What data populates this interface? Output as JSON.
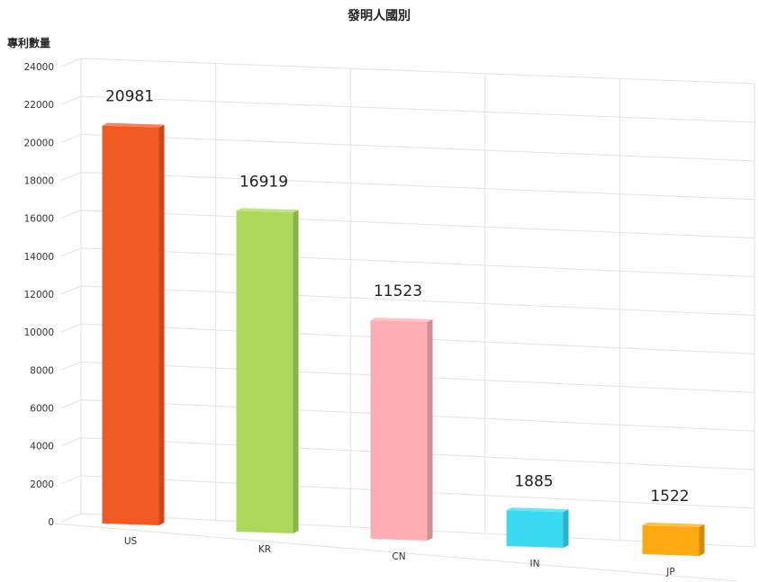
{
  "chart_data": {
    "type": "bar",
    "title": "發明人國別",
    "ylabel": "專利數量",
    "xlabel": "",
    "categories": [
      "US",
      "KR",
      "CN",
      "IN",
      "JP"
    ],
    "values": [
      20981,
      16919,
      11523,
      1885,
      1522
    ],
    "colors": [
      "#f25a24",
      "#acd95a",
      "#ffadb3",
      "#3ad9f2",
      "#ffa912"
    ],
    "ylim": [
      0,
      24000
    ],
    "yticks": [
      0,
      2000,
      4000,
      6000,
      8000,
      10000,
      12000,
      14000,
      16000,
      18000,
      20000,
      22000,
      24000
    ],
    "grid": true,
    "legend": "none",
    "style": "3d"
  }
}
